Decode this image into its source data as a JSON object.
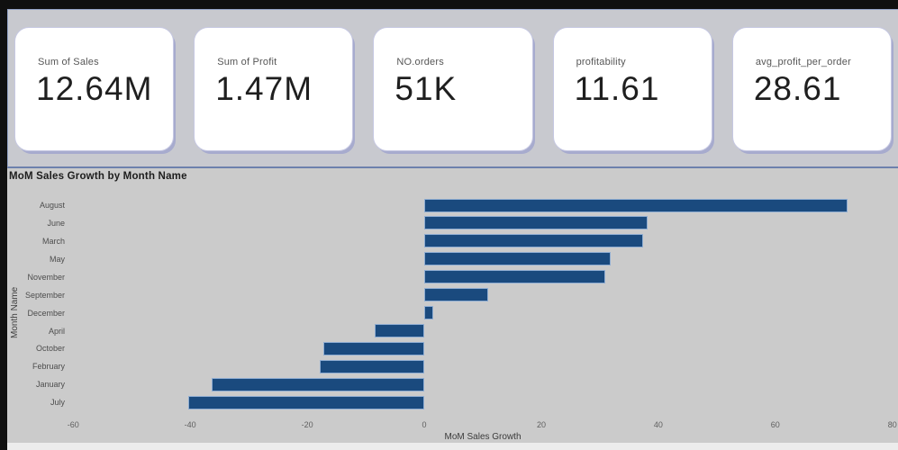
{
  "cards": [
    {
      "label": "Sum of Sales",
      "value": "12.64M"
    },
    {
      "label": "Sum of Profit",
      "value": "1.47M"
    },
    {
      "label": "NO.orders",
      "value": "51K"
    },
    {
      "label": "profitability",
      "value": "11.61"
    },
    {
      "label": "avg_profit_per_order",
      "value": "28.61"
    }
  ],
  "chart": {
    "title": "MoM Sales Growth by Month Name",
    "y_axis_title": "Month Name",
    "x_axis_title": "MoM Sales Growth"
  },
  "chart_data": {
    "type": "bar",
    "orientation": "horizontal",
    "title": "MoM Sales Growth by Month Name",
    "xlabel": "MoM Sales Growth",
    "ylabel": "Month Name",
    "categories": [
      "August",
      "June",
      "March",
      "May",
      "November",
      "September",
      "December",
      "April",
      "October",
      "February",
      "January",
      "July"
    ],
    "values": [
      72.4,
      38.2,
      37.4,
      31.8,
      30.9,
      11.0,
      1.6,
      -8.4,
      -17.2,
      -17.9,
      -36.4,
      -40.4
    ],
    "xlim": [
      -60.5,
      80.5
    ],
    "x_ticks": [
      -60,
      -40,
      -20,
      0,
      20,
      40,
      60,
      80
    ],
    "grid": false,
    "legend": false
  },
  "colors": {
    "bar_fill": "#1a4a7e",
    "bar_border": "#8fadd2",
    "panel_bg": "#c8c9cf",
    "chart_bg": "#cbcbcb",
    "card_bg": "#ffffff",
    "card_shadow": "#a7abce"
  }
}
